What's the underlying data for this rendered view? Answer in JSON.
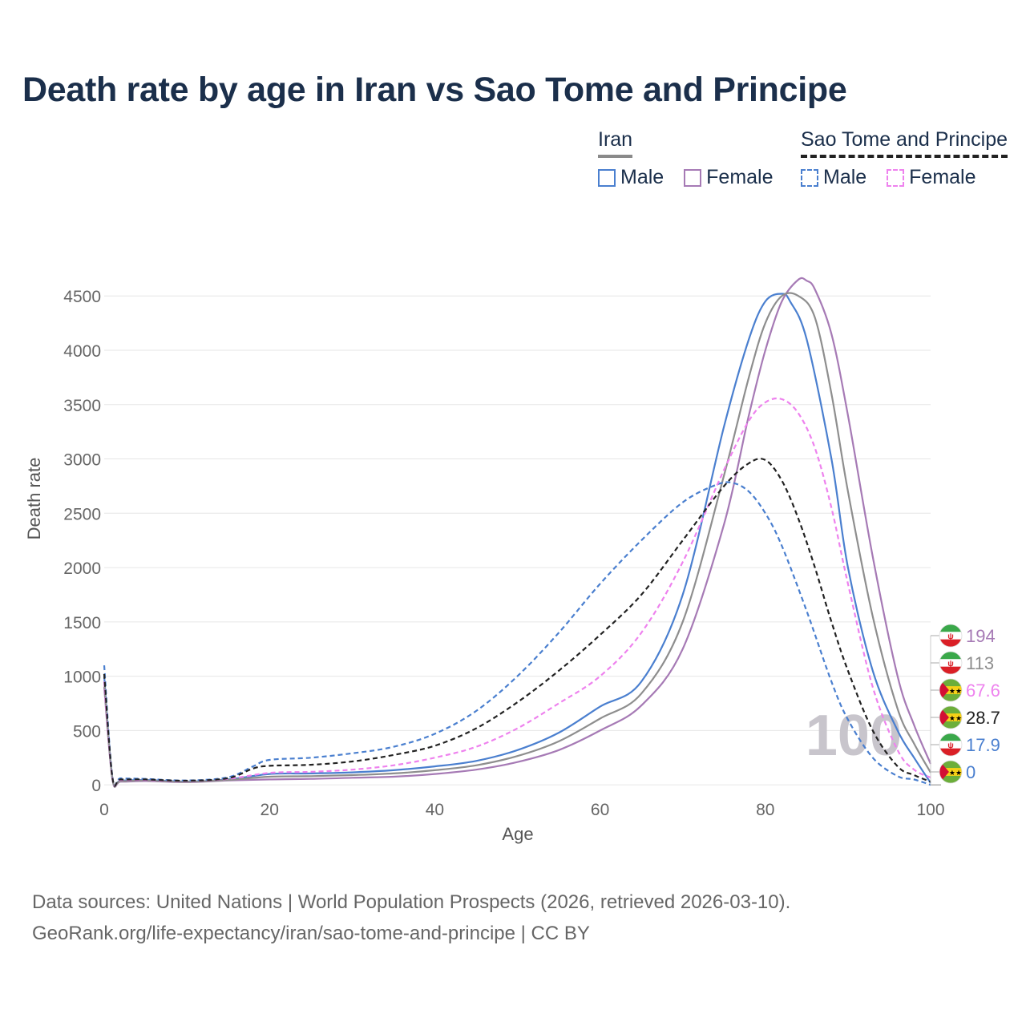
{
  "title": "Death rate by age in Iran vs Sao Tome and Principe",
  "legend": {
    "groups": [
      {
        "name": "Iran",
        "style": "solid",
        "items": [
          {
            "label": "Male",
            "color": "#4a7fcf"
          },
          {
            "label": "Female",
            "color": "#a67ab5"
          }
        ]
      },
      {
        "name": "Sao Tome and Principe",
        "style": "dashed",
        "items": [
          {
            "label": "Male",
            "color": "#4a7fcf"
          },
          {
            "label": "Female",
            "color": "#ee82ee"
          }
        ]
      }
    ]
  },
  "footer": {
    "line1": "Data sources: United Nations | World Population Prospects (2026, retrieved 2026-03-10).",
    "line2": "GeoRank.org/life-expectancy/iran/sao-tome-and-principe | CC BY"
  },
  "chart_data": {
    "type": "line",
    "xlabel": "Age",
    "ylabel": "Death rate",
    "xlim": [
      0,
      100
    ],
    "ylim": [
      -80,
      4900
    ],
    "xticks": [
      0,
      20,
      40,
      60,
      80,
      100
    ],
    "yticks": [
      0,
      500,
      1000,
      1500,
      2000,
      2500,
      3000,
      3500,
      4000,
      4500
    ],
    "watermark": "100",
    "series": [
      {
        "name": "Iran Male",
        "color": "#4a7fcf",
        "dash": false,
        "x": [
          0,
          1,
          2,
          5,
          10,
          15,
          20,
          25,
          30,
          35,
          40,
          45,
          50,
          55,
          60,
          65,
          70,
          75,
          78,
          80,
          82,
          83,
          85,
          88,
          90,
          93,
          96,
          98,
          100
        ],
        "y": [
          1000,
          60,
          40,
          45,
          30,
          50,
          100,
          105,
          115,
          135,
          170,
          220,
          320,
          480,
          720,
          950,
          1750,
          3300,
          4100,
          4450,
          4520,
          4450,
          4100,
          3000,
          2000,
          1050,
          500,
          250,
          17.9
        ]
      },
      {
        "name": "Iran Female",
        "color": "#a67ab5",
        "dash": false,
        "x": [
          0,
          1,
          2,
          5,
          10,
          15,
          20,
          25,
          30,
          35,
          40,
          45,
          50,
          55,
          60,
          65,
          70,
          75,
          78,
          80,
          82,
          84,
          85,
          86,
          88,
          90,
          93,
          96,
          98,
          100
        ],
        "y": [
          900,
          50,
          30,
          35,
          25,
          40,
          50,
          55,
          65,
          75,
          100,
          140,
          210,
          320,
          500,
          730,
          1250,
          2400,
          3400,
          4000,
          4450,
          4650,
          4640,
          4560,
          4150,
          3400,
          2100,
          1000,
          550,
          194
        ]
      },
      {
        "name": "Iran Both",
        "color": "#8e8e8e",
        "dash": false,
        "x": [
          0,
          1,
          2,
          5,
          10,
          15,
          20,
          25,
          30,
          35,
          40,
          45,
          50,
          55,
          60,
          65,
          70,
          75,
          78,
          80,
          82,
          84,
          86,
          88,
          90,
          93,
          96,
          98,
          100
        ],
        "y": [
          950,
          55,
          35,
          40,
          28,
          45,
          75,
          80,
          90,
          105,
          135,
          180,
          265,
          400,
          610,
          840,
          1500,
          2850,
          3750,
          4250,
          4500,
          4500,
          4300,
          3600,
          2700,
          1550,
          700,
          380,
          113
        ]
      },
      {
        "name": "Sao Tome and Principe Male",
        "color": "#4a7fcf",
        "dash": true,
        "x": [
          0,
          1,
          2,
          5,
          10,
          15,
          18,
          20,
          25,
          30,
          35,
          40,
          45,
          50,
          55,
          60,
          65,
          70,
          74,
          76,
          78,
          80,
          82,
          85,
          88,
          90,
          93,
          96,
          98,
          100
        ],
        "y": [
          1100,
          70,
          60,
          55,
          40,
          70,
          170,
          230,
          250,
          290,
          350,
          470,
          680,
          1000,
          1400,
          1850,
          2250,
          2600,
          2760,
          2780,
          2700,
          2500,
          2200,
          1600,
          950,
          600,
          250,
          80,
          50,
          0
        ]
      },
      {
        "name": "Sao Tome and Principe Female",
        "color": "#ee82ee",
        "dash": true,
        "x": [
          0,
          1,
          2,
          5,
          10,
          15,
          20,
          25,
          30,
          35,
          40,
          45,
          50,
          55,
          60,
          65,
          70,
          75,
          78,
          80,
          82,
          84,
          86,
          88,
          90,
          93,
          96,
          98,
          100
        ],
        "y": [
          950,
          60,
          45,
          45,
          35,
          55,
          110,
          120,
          140,
          180,
          250,
          350,
          520,
          750,
          1000,
          1400,
          2050,
          2900,
          3350,
          3520,
          3550,
          3420,
          3100,
          2550,
          1850,
          900,
          320,
          140,
          67.6
        ]
      },
      {
        "name": "Sao Tome and Principe Both",
        "color": "#222222",
        "dash": true,
        "x": [
          0,
          1,
          2,
          5,
          10,
          15,
          18,
          20,
          25,
          30,
          35,
          40,
          45,
          50,
          55,
          60,
          65,
          70,
          75,
          78,
          80,
          82,
          84,
          86,
          88,
          90,
          93,
          96,
          98,
          100
        ],
        "y": [
          1020,
          65,
          50,
          50,
          38,
          62,
          150,
          175,
          185,
          215,
          275,
          360,
          520,
          760,
          1050,
          1380,
          1750,
          2250,
          2750,
          2960,
          2990,
          2800,
          2450,
          2000,
          1500,
          1050,
          500,
          170,
          90,
          28.7
        ]
      }
    ],
    "end_labels": [
      {
        "text": "194",
        "color": "#a67ab5",
        "flag": "iran"
      },
      {
        "text": "113",
        "color": "#8e8e8e",
        "flag": "iran"
      },
      {
        "text": "67.6",
        "color": "#ee82ee",
        "flag": "stp"
      },
      {
        "text": "28.7",
        "color": "#222222",
        "flag": "stp"
      },
      {
        "text": "17.9",
        "color": "#4a7fcf",
        "flag": "iran"
      },
      {
        "text": "0",
        "color": "#4a7fcf",
        "flag": "stp"
      }
    ]
  }
}
